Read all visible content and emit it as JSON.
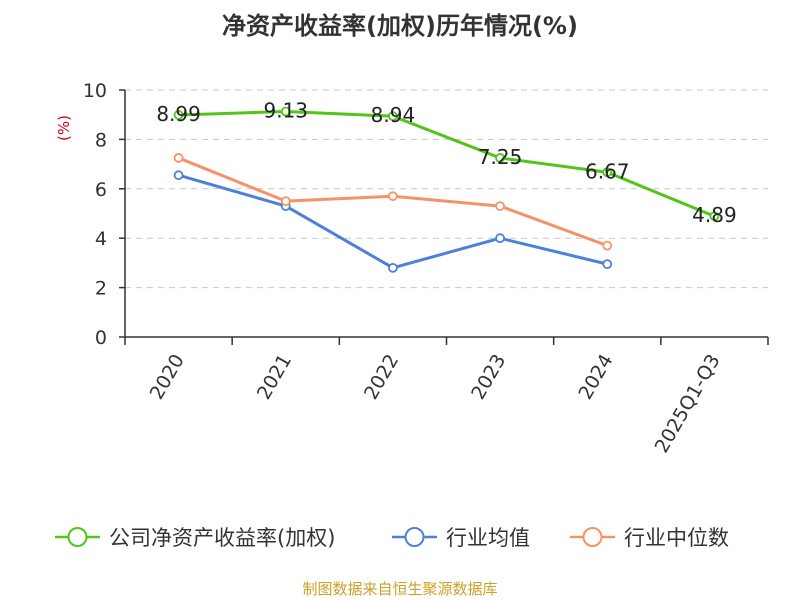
{
  "chart_data": {
    "type": "line",
    "title": "净资产收益率(加权)历年情况(%)",
    "ylabel": "(%)",
    "xlabel": "",
    "ylim": [
      0,
      10
    ],
    "yticks": [
      0,
      2,
      4,
      6,
      8,
      10
    ],
    "categories": [
      "2020",
      "2021",
      "2022",
      "2023",
      "2024",
      "2025Q1-Q3"
    ],
    "series": [
      {
        "name": "公司净资产收益率(加权)",
        "color": "#52c41a",
        "values": [
          8.99,
          9.13,
          8.94,
          7.25,
          6.67,
          4.89
        ],
        "labels": [
          "8.99",
          "9.13",
          "8.94",
          "7.25",
          "6.67",
          "4.89"
        ]
      },
      {
        "name": "行业均值",
        "color": "#4e7fd9",
        "values": [
          6.55,
          5.3,
          2.8,
          4.0,
          2.95,
          null
        ]
      },
      {
        "name": "行业中位数",
        "color": "#f59366",
        "values": [
          7.25,
          5.5,
          5.7,
          5.3,
          3.7,
          null
        ]
      }
    ],
    "grid": true,
    "legend_position": "bottom"
  },
  "source_note": "制图数据来自恒生聚源数据库",
  "colors": {
    "axis": "#333333",
    "grid": "#c8c8c8",
    "ylabel": "#d0021b",
    "source": "#c9a227"
  }
}
